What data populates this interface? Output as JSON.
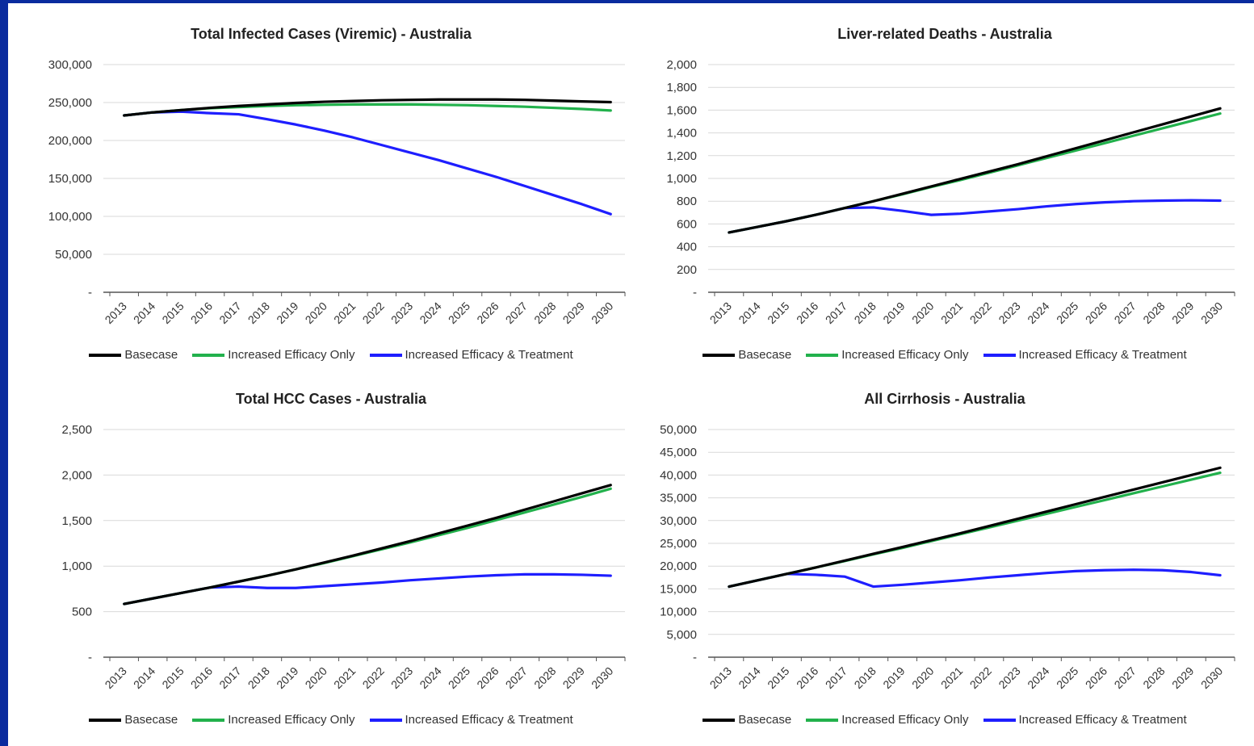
{
  "chart_data": [
    {
      "type": "line",
      "title": "Total Infected Cases (Viremic) - Australia",
      "x": [
        2013,
        2014,
        2015,
        2016,
        2017,
        2018,
        2019,
        2020,
        2021,
        2022,
        2023,
        2024,
        2025,
        2026,
        2027,
        2028,
        2029,
        2030
      ],
      "ylim": [
        0,
        300000
      ],
      "yticks": [
        0,
        50000,
        100000,
        150000,
        200000,
        250000,
        300000
      ],
      "ytick_labels": [
        "-",
        "50,000",
        "100,000",
        "150,000",
        "200,000",
        "250,000",
        "300,000"
      ],
      "series": [
        {
          "name": "Basecase",
          "color": "#000000",
          "values": [
            233000,
            237000,
            240000,
            243000,
            245500,
            247500,
            249500,
            251000,
            252000,
            253000,
            253500,
            254000,
            254000,
            254000,
            253500,
            252500,
            251500,
            250500
          ]
        },
        {
          "name": "Increased Efficacy Only",
          "color": "#22b14c",
          "values": [
            233000,
            237000,
            240000,
            242500,
            244000,
            245500,
            246500,
            247000,
            247500,
            247500,
            247500,
            247000,
            246500,
            245500,
            244500,
            243000,
            241500,
            239500
          ]
        },
        {
          "name": "Increased Efficacy & Treatment",
          "color": "#1e1eff",
          "values": [
            233000,
            237000,
            238000,
            236000,
            234500,
            228000,
            221000,
            213000,
            204000,
            194000,
            184000,
            174000,
            163000,
            152000,
            140000,
            128000,
            116000,
            103000
          ]
        }
      ],
      "grid": true,
      "legend": "bottom"
    },
    {
      "type": "line",
      "title": "Liver-related Deaths - Australia",
      "x": [
        2013,
        2014,
        2015,
        2016,
        2017,
        2018,
        2019,
        2020,
        2021,
        2022,
        2023,
        2024,
        2025,
        2026,
        2027,
        2028,
        2029,
        2030
      ],
      "ylim": [
        0,
        2000
      ],
      "yticks": [
        0,
        200,
        400,
        600,
        800,
        1000,
        1200,
        1400,
        1600,
        1800,
        2000
      ],
      "ytick_labels": [
        "-",
        "200",
        "400",
        "600",
        "800",
        "1,000",
        "1,200",
        "1,400",
        "1,600",
        "1,800",
        "2,000"
      ],
      "series": [
        {
          "name": "Basecase",
          "color": "#000000",
          "values": [
            525,
            575,
            625,
            680,
            740,
            800,
            865,
            930,
            995,
            1060,
            1125,
            1195,
            1265,
            1335,
            1405,
            1475,
            1545,
            1615
          ]
        },
        {
          "name": "Increased Efficacy Only",
          "color": "#22b14c",
          "values": [
            525,
            575,
            625,
            680,
            740,
            800,
            860,
            925,
            985,
            1050,
            1115,
            1180,
            1245,
            1310,
            1375,
            1440,
            1505,
            1570
          ]
        },
        {
          "name": "Increased Efficacy & Treatment",
          "color": "#1e1eff",
          "values": [
            525,
            575,
            625,
            680,
            740,
            745,
            715,
            680,
            690,
            710,
            730,
            755,
            775,
            790,
            800,
            805,
            808,
            805
          ]
        }
      ],
      "grid": true,
      "legend": "bottom"
    },
    {
      "type": "line",
      "title": "Total HCC Cases - Australia",
      "x": [
        2013,
        2014,
        2015,
        2016,
        2017,
        2018,
        2019,
        2020,
        2021,
        2022,
        2023,
        2024,
        2025,
        2026,
        2027,
        2028,
        2029,
        2030
      ],
      "ylim": [
        0,
        2500
      ],
      "yticks": [
        0,
        500,
        1000,
        1500,
        2000,
        2500
      ],
      "ytick_labels": [
        "-",
        "500",
        "1,000",
        "1,500",
        "2,000",
        "2,500"
      ],
      "series": [
        {
          "name": "Basecase",
          "color": "#000000",
          "values": [
            585,
            645,
            705,
            765,
            830,
            895,
            965,
            1040,
            1115,
            1195,
            1275,
            1360,
            1445,
            1530,
            1620,
            1710,
            1800,
            1890
          ]
        },
        {
          "name": "Increased Efficacy Only",
          "color": "#22b14c",
          "values": [
            585,
            645,
            705,
            765,
            830,
            895,
            965,
            1035,
            1110,
            1185,
            1260,
            1340,
            1420,
            1505,
            1590,
            1675,
            1760,
            1850
          ]
        },
        {
          "name": "Increased Efficacy & Treatment",
          "color": "#1e1eff",
          "values": [
            585,
            645,
            705,
            765,
            775,
            760,
            760,
            780,
            800,
            820,
            845,
            865,
            885,
            900,
            910,
            910,
            905,
            895
          ]
        }
      ],
      "grid": true,
      "legend": "bottom"
    },
    {
      "type": "line",
      "title": "All Cirrhosis - Australia",
      "x": [
        2013,
        2014,
        2015,
        2016,
        2017,
        2018,
        2019,
        2020,
        2021,
        2022,
        2023,
        2024,
        2025,
        2026,
        2027,
        2028,
        2029,
        2030
      ],
      "ylim": [
        0,
        50000
      ],
      "yticks": [
        0,
        5000,
        10000,
        15000,
        20000,
        25000,
        30000,
        35000,
        40000,
        45000,
        50000
      ],
      "ytick_labels": [
        "-",
        "5,000",
        "10,000",
        "15,000",
        "20,000",
        "25,000",
        "30,000",
        "35,000",
        "40,000",
        "45,000",
        "50,000"
      ],
      "series": [
        {
          "name": "Basecase",
          "color": "#000000",
          "values": [
            15500,
            16900,
            18300,
            19700,
            21200,
            22700,
            24200,
            25700,
            27200,
            28800,
            30400,
            32000,
            33600,
            35200,
            36800,
            38400,
            40000,
            41600
          ]
        },
        {
          "name": "Increased Efficacy Only",
          "color": "#22b14c",
          "values": [
            15500,
            16900,
            18300,
            19700,
            21100,
            22600,
            24000,
            25500,
            27000,
            28500,
            30000,
            31500,
            33000,
            34500,
            36000,
            37500,
            39000,
            40500
          ]
        },
        {
          "name": "Increased Efficacy & Treatment",
          "color": "#1e1eff",
          "values": [
            15500,
            16900,
            18300,
            18100,
            17700,
            15500,
            15900,
            16400,
            16900,
            17500,
            18000,
            18500,
            18900,
            19100,
            19200,
            19100,
            18700,
            18000
          ]
        }
      ],
      "grid": true,
      "legend": "bottom"
    }
  ]
}
